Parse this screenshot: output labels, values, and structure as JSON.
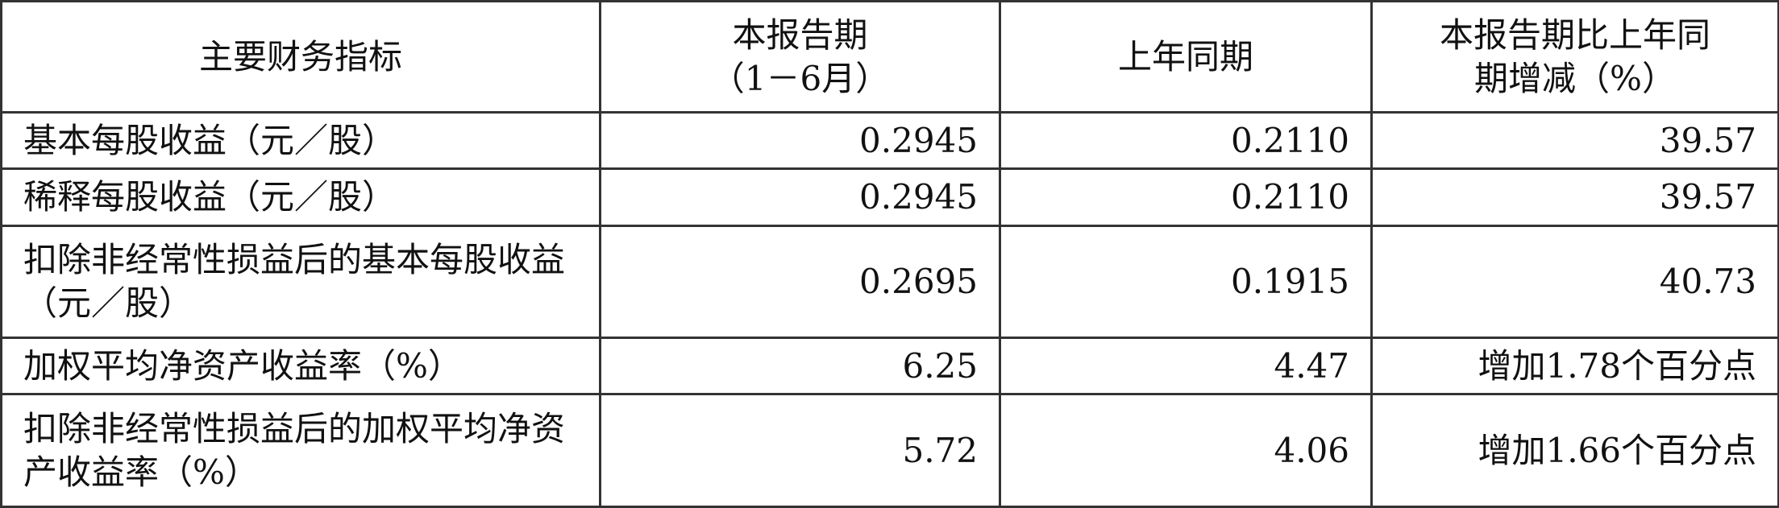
{
  "headers": [
    "主要财务指标",
    "本报告期\n（1－6月）",
    "上年同期",
    "本报告期比上年同\n期增减（%）"
  ],
  "rows": [
    {
      "label": "基本每股收益（元／股）",
      "current": "0.2945",
      "previous": "0.2110",
      "change": "39.57"
    },
    {
      "label": "稀释每股收益（元／股）",
      "current": "0.2945",
      "previous": "0.2110",
      "change": "39.57"
    },
    {
      "label": "扣除非经常性损益后的基本每股收益（元／股）",
      "current": "0.2695",
      "previous": "0.1915",
      "change": "40.73"
    },
    {
      "label": "加权平均净资产收益率（%）",
      "current": "6.25",
      "previous": "4.47",
      "change": "增加1.78个百分点"
    },
    {
      "label": "扣除非经常性损益后的加权平均净资产收益率（%）",
      "current": "5.72",
      "previous": "4.06",
      "change": "增加1.66个百分点"
    }
  ]
}
